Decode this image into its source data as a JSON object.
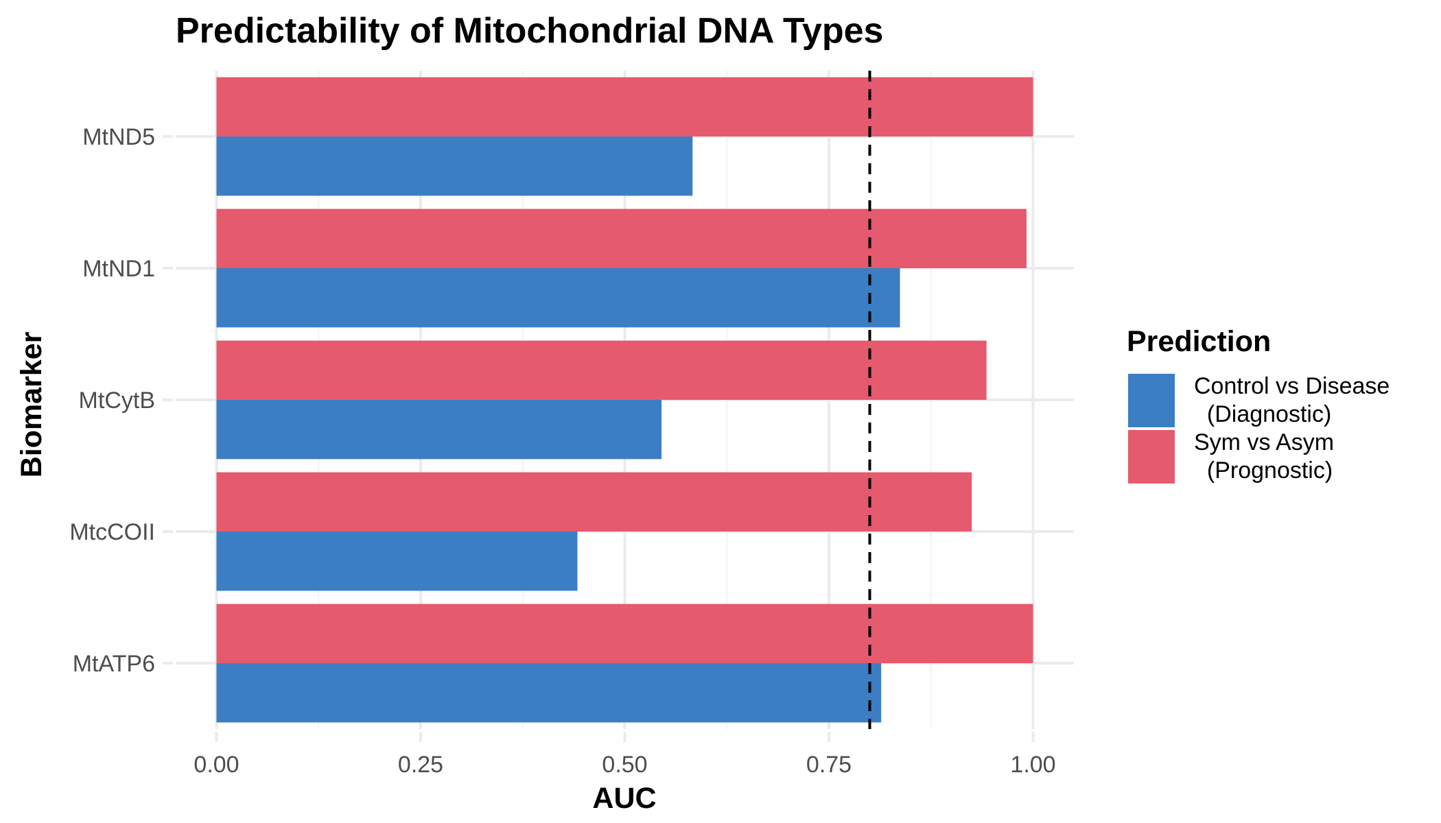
{
  "chart_data": {
    "type": "bar",
    "orientation": "horizontal",
    "title": "Predictability of Mitochondrial DNA Types",
    "xlabel": "AUC",
    "ylabel": "Biomarker",
    "categories": [
      "MtND5",
      "MtND1",
      "MtCytB",
      "MtcCOII",
      "MtATP6"
    ],
    "series": [
      {
        "name": "Control vs Disease\n  (Diagnostic)",
        "name_lines": [
          "Control vs Disease",
          "  (Diagnostic)"
        ],
        "color": "#3B7EC4",
        "values": [
          0.583,
          0.837,
          0.545,
          0.442,
          0.814
        ]
      },
      {
        "name": "Sym vs Asym\n  (Prognostic)",
        "name_lines": [
          "Sym vs Asym",
          "  (Prognostic)"
        ],
        "color": "#E65A6E",
        "values": [
          1.0,
          0.992,
          0.943,
          0.925,
          1.0
        ]
      }
    ],
    "xlim": [
      -0.05,
      1.05
    ],
    "xticks": [
      0.0,
      0.25,
      0.5,
      0.75,
      1.0
    ],
    "xtick_labels": [
      "0.00",
      "0.25",
      "0.50",
      "0.75",
      "1.00"
    ],
    "reference_line": {
      "x": 0.8,
      "style": "dashed",
      "color": "#000000"
    },
    "legend": {
      "title": "Prediction",
      "position": "right"
    },
    "grid": true
  }
}
